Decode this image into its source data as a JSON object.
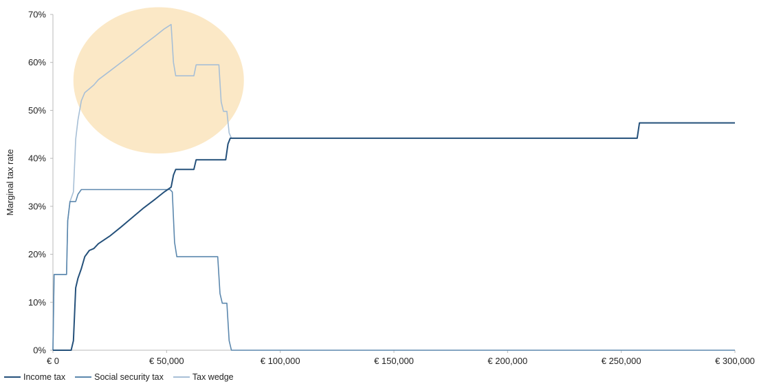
{
  "chart_data": {
    "type": "line",
    "title": "",
    "xlabel": "",
    "ylabel": "Marginal tax rate",
    "xlim": [
      0,
      300000
    ],
    "ylim": [
      0,
      0.7
    ],
    "x_ticks": [
      0,
      50000,
      100000,
      150000,
      200000,
      250000,
      300000
    ],
    "x_tick_labels": [
      "€ 0",
      "€ 50,000",
      "€ 100,000",
      "€ 150,000",
      "€ 200,000",
      "€ 250,000",
      "€ 300,000"
    ],
    "y_ticks": [
      0,
      0.1,
      0.2,
      0.3,
      0.4,
      0.5,
      0.6,
      0.7
    ],
    "y_tick_labels": [
      "0%",
      "10%",
      "20%",
      "30%",
      "40%",
      "50%",
      "60%",
      "70%"
    ],
    "grid": false,
    "legend_position": "bottom-left",
    "highlight_ellipse": {
      "color": "#fbe8c6",
      "x_range": [
        9000,
        84000
      ],
      "y_range": [
        0.41,
        0.715
      ]
    },
    "series": [
      {
        "name": "Income tax",
        "color": "#24507a",
        "points": [
          [
            0,
            0
          ],
          [
            8000,
            0
          ],
          [
            9000,
            0.02
          ],
          [
            10000,
            0.13
          ],
          [
            11000,
            0.15
          ],
          [
            12500,
            0.17
          ],
          [
            14000,
            0.195
          ],
          [
            16000,
            0.208
          ],
          [
            18000,
            0.212
          ],
          [
            20000,
            0.222
          ],
          [
            25000,
            0.238
          ],
          [
            30000,
            0.257
          ],
          [
            35000,
            0.277
          ],
          [
            40000,
            0.297
          ],
          [
            45000,
            0.315
          ],
          [
            49000,
            0.33
          ],
          [
            52000,
            0.34
          ],
          [
            53000,
            0.365
          ],
          [
            54000,
            0.377
          ],
          [
            62000,
            0.377
          ],
          [
            63000,
            0.397
          ],
          [
            76000,
            0.397
          ],
          [
            77000,
            0.43
          ],
          [
            78000,
            0.442
          ],
          [
            257000,
            0.442
          ],
          [
            258000,
            0.474
          ],
          [
            300000,
            0.474
          ]
        ]
      },
      {
        "name": "Social security tax",
        "color": "#5b87ad",
        "points": [
          [
            0,
            0
          ],
          [
            500,
            0.158
          ],
          [
            6000,
            0.158
          ],
          [
            6500,
            0.27
          ],
          [
            7500,
            0.31
          ],
          [
            10000,
            0.31
          ],
          [
            11000,
            0.325
          ],
          [
            12500,
            0.335
          ],
          [
            51500,
            0.335
          ],
          [
            52500,
            0.33
          ],
          [
            53500,
            0.225
          ],
          [
            54500,
            0.195
          ],
          [
            72500,
            0.195
          ],
          [
            73500,
            0.118
          ],
          [
            74500,
            0.098
          ],
          [
            76500,
            0.098
          ],
          [
            77500,
            0.02
          ],
          [
            78500,
            0
          ],
          [
            300000,
            0
          ]
        ]
      },
      {
        "name": "Tax wedge",
        "color": "#a7bfd6",
        "points": [
          [
            0,
            0
          ],
          [
            500,
            0.158
          ],
          [
            6000,
            0.158
          ],
          [
            6500,
            0.27
          ],
          [
            7500,
            0.31
          ],
          [
            9000,
            0.33
          ],
          [
            10000,
            0.44
          ],
          [
            11000,
            0.48
          ],
          [
            12500,
            0.52
          ],
          [
            14000,
            0.537
          ],
          [
            16000,
            0.545
          ],
          [
            18000,
            0.553
          ],
          [
            20000,
            0.564
          ],
          [
            25000,
            0.582
          ],
          [
            30000,
            0.6
          ],
          [
            35000,
            0.618
          ],
          [
            40000,
            0.637
          ],
          [
            45000,
            0.655
          ],
          [
            49000,
            0.67
          ],
          [
            52000,
            0.679
          ],
          [
            53000,
            0.6
          ],
          [
            54000,
            0.572
          ],
          [
            62000,
            0.572
          ],
          [
            63000,
            0.595
          ],
          [
            73000,
            0.595
          ],
          [
            74000,
            0.518
          ],
          [
            75000,
            0.498
          ],
          [
            76500,
            0.498
          ],
          [
            77500,
            0.453
          ],
          [
            78500,
            0.442
          ],
          [
            257000,
            0.442
          ],
          [
            258000,
            0.474
          ],
          [
            300000,
            0.474
          ]
        ]
      }
    ]
  }
}
